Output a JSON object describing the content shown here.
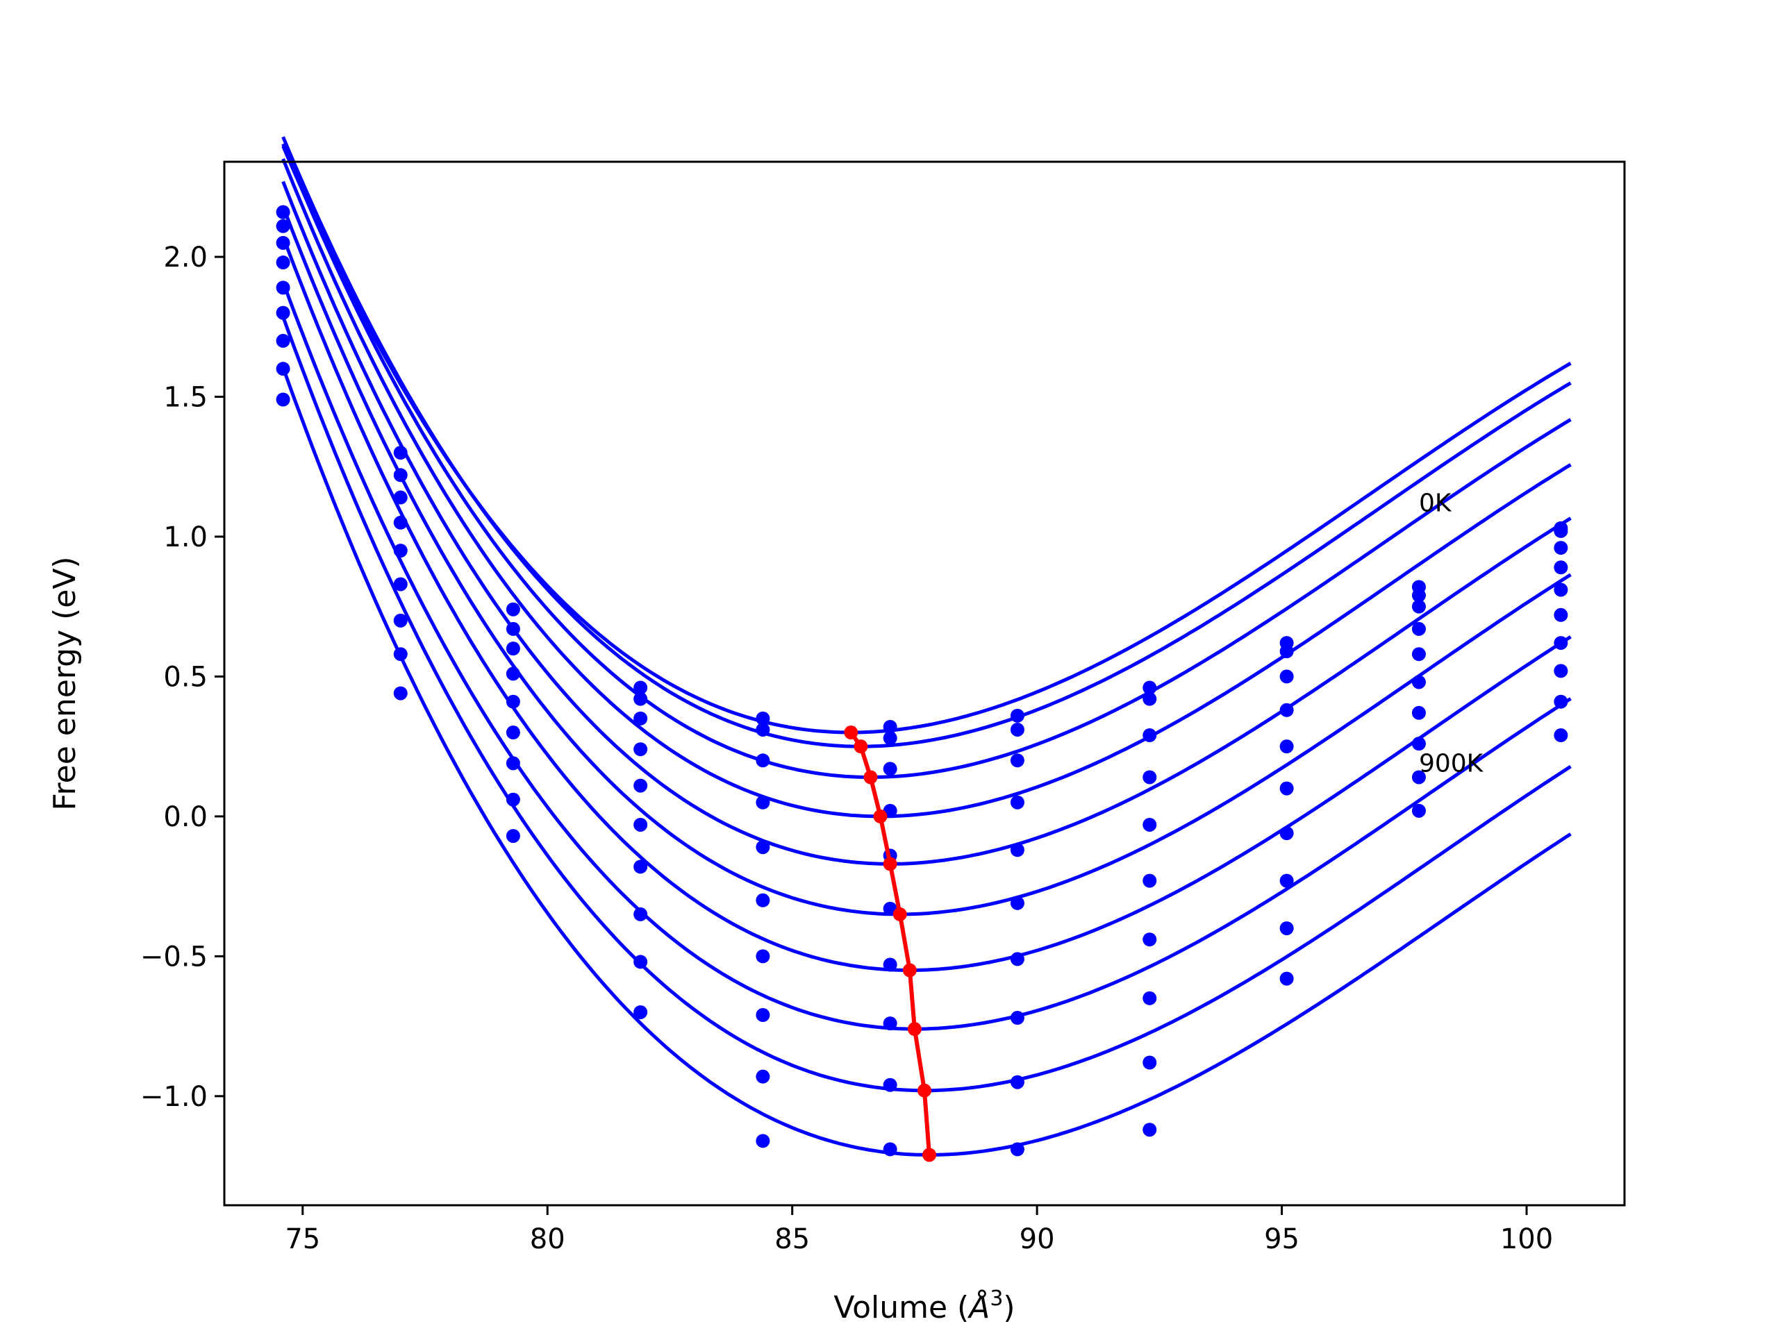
{
  "chart_data": {
    "type": "line",
    "title": "",
    "xlabel": "Volume (Å^3)",
    "xlabel_parts": {
      "text": "Volume (",
      "symbol": "Å",
      "exponent": "3",
      "close": ")"
    },
    "ylabel": "Free energy (eV)",
    "xlim": [
      73.4,
      102.0
    ],
    "ylim": [
      -1.39,
      2.34
    ],
    "xticks": [
      75,
      80,
      85,
      90,
      95,
      100
    ],
    "xtick_labels": [
      "75",
      "80",
      "85",
      "90",
      "95",
      "100"
    ],
    "yticks": [
      -1.0,
      -0.5,
      0.0,
      0.5,
      1.0,
      1.5,
      2.0
    ],
    "ytick_labels": [
      "−1.0",
      "−0.5",
      "0.0",
      "0.5",
      "1.0",
      "1.5",
      "2.0"
    ],
    "grid": false,
    "annotations": [
      {
        "text": "0K",
        "x": 97.8,
        "y": 1.09
      },
      {
        "text": "900K",
        "x": 97.8,
        "y": 0.16
      }
    ],
    "x": [
      74.6,
      77.0,
      79.3,
      81.9,
      84.4,
      87.0,
      89.6,
      92.3,
      95.1,
      97.8,
      100.7
    ],
    "series": [
      {
        "values": [
          2.16,
          1.3,
          0.74,
          0.46,
          0.35,
          0.32,
          0.36,
          0.46,
          0.62,
          0.82,
          1.03
        ]
      },
      {
        "values": [
          2.11,
          1.22,
          0.67,
          0.42,
          0.31,
          0.28,
          0.31,
          0.42,
          0.59,
          0.79,
          1.02
        ]
      },
      {
        "values": [
          2.05,
          1.14,
          0.6,
          0.35,
          0.2,
          0.17,
          0.2,
          0.29,
          0.5,
          0.75,
          0.96
        ]
      },
      {
        "values": [
          1.98,
          1.05,
          0.51,
          0.24,
          0.05,
          0.02,
          0.05,
          0.14,
          0.38,
          0.67,
          0.89
        ]
      },
      {
        "values": [
          1.89,
          0.95,
          0.41,
          0.11,
          -0.11,
          -0.14,
          -0.12,
          -0.03,
          0.25,
          0.58,
          0.81
        ]
      },
      {
        "values": [
          1.8,
          0.83,
          0.3,
          -0.03,
          -0.3,
          -0.33,
          -0.31,
          -0.23,
          0.1,
          0.48,
          0.72
        ]
      },
      {
        "values": [
          1.7,
          0.7,
          0.19,
          -0.18,
          -0.5,
          -0.53,
          -0.51,
          -0.44,
          -0.06,
          0.37,
          0.62
        ]
      },
      {
        "values": [
          1.6,
          0.58,
          0.06,
          -0.35,
          -0.71,
          -0.74,
          -0.72,
          -0.65,
          -0.23,
          0.26,
          0.52
        ]
      },
      {
        "values": [
          1.49,
          0.44,
          -0.07,
          -0.52,
          -0.93,
          -0.96,
          -0.95,
          -0.88,
          -0.4,
          0.14,
          0.41
        ]
      },
      {
        "values": [
          null,
          null,
          null,
          -0.7,
          -1.16,
          -1.19,
          -1.19,
          -1.12,
          -0.58,
          0.02,
          0.29
        ]
      }
    ],
    "fits": [
      {
        "e0": 0.3,
        "v0": 86.2,
        "a": 0.0114,
        "b": -0.00036
      },
      {
        "e0": 0.25,
        "v0": 86.4,
        "a": 0.0114,
        "b": -0.00036
      },
      {
        "e0": 0.14,
        "v0": 86.6,
        "a": 0.0114,
        "b": -0.00036
      },
      {
        "e0": 0.0,
        "v0": 86.8,
        "a": 0.0114,
        "b": -0.00036
      },
      {
        "e0": -0.17,
        "v0": 87.0,
        "a": 0.0114,
        "b": -0.00036
      },
      {
        "e0": -0.35,
        "v0": 87.2,
        "a": 0.0114,
        "b": -0.00036
      },
      {
        "e0": -0.55,
        "v0": 87.4,
        "a": 0.0114,
        "b": -0.00036
      },
      {
        "e0": -0.76,
        "v0": 87.5,
        "a": 0.0114,
        "b": -0.00036
      },
      {
        "e0": -0.98,
        "v0": 87.7,
        "a": 0.0114,
        "b": -0.00036
      },
      {
        "e0": -1.21,
        "v0": 87.8,
        "a": 0.0114,
        "b": -0.00036
      }
    ],
    "minima": {
      "x": [
        86.2,
        86.4,
        86.6,
        86.8,
        87.0,
        87.2,
        87.4,
        87.5,
        87.7,
        87.8
      ],
      "y": [
        0.3,
        0.25,
        0.14,
        0.0,
        -0.17,
        -0.35,
        -0.55,
        -0.76,
        -0.98,
        -1.21
      ]
    },
    "colors": {
      "curves": "#0000ff",
      "minima": "#ff0000",
      "axes": "#000000"
    }
  }
}
